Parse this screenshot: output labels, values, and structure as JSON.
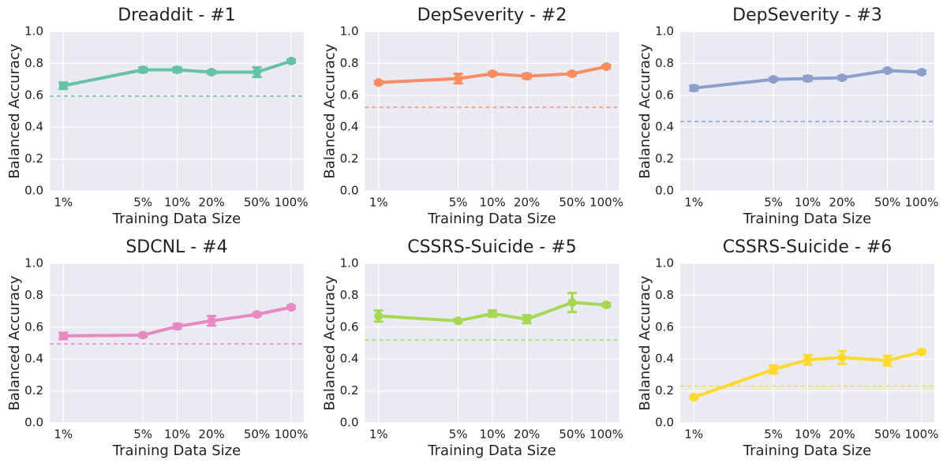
{
  "chart_data": [
    {
      "type": "line",
      "title": "Dreaddit - #1",
      "xlabel": "Training Data Size",
      "ylabel": "Balanced Accuracy",
      "x": [
        1,
        5,
        10,
        20,
        50,
        100
      ],
      "log_x": true,
      "xlim": [
        0.76,
        129
      ],
      "ylim": [
        0,
        1
      ],
      "xticks": [
        {
          "value": 1,
          "label": "1%"
        },
        {
          "value": 5,
          "label": "5%"
        },
        {
          "value": 10,
          "label": "10%"
        },
        {
          "value": 20,
          "label": "20%"
        },
        {
          "value": 50,
          "label": "50%"
        },
        {
          "value": 100,
          "label": "100%"
        }
      ],
      "yticks": [
        {
          "value": 0,
          "label": "0.0"
        },
        0.2,
        0.4,
        0.6,
        0.8,
        {
          "value": 1,
          "label": "1.0"
        }
      ],
      "grid": true,
      "series": [
        {
          "color": "#66c2a5",
          "values": [
            0.66,
            0.76,
            0.76,
            0.745,
            0.745,
            0.815
          ],
          "errors": [
            0.02,
            0.015,
            0.015,
            0.01,
            0.03,
            0.01
          ]
        }
      ],
      "baseline": 0.595
    },
    {
      "type": "line",
      "title": "DepSeverity - #2",
      "xlabel": "Training Data Size",
      "ylabel": "Balanced Accuracy",
      "x": [
        1,
        5,
        10,
        20,
        50,
        100
      ],
      "log_x": true,
      "xlim": [
        0.76,
        129
      ],
      "ylim": [
        0,
        1
      ],
      "xticks": [
        {
          "value": 1,
          "label": "1%"
        },
        {
          "value": 5,
          "label": "5%"
        },
        {
          "value": 10,
          "label": "10%"
        },
        {
          "value": 20,
          "label": "20%"
        },
        {
          "value": 50,
          "label": "50%"
        },
        {
          "value": 100,
          "label": "100%"
        }
      ],
      "yticks": [
        {
          "value": 0,
          "label": "0.0"
        },
        0.2,
        0.4,
        0.6,
        0.8,
        {
          "value": 1,
          "label": "1.0"
        }
      ],
      "grid": true,
      "series": [
        {
          "color": "#fc8d62",
          "values": [
            0.68,
            0.705,
            0.735,
            0.72,
            0.735,
            0.78
          ],
          "errors": [
            0.01,
            0.03,
            0.01,
            0.015,
            0.01,
            0.01
          ]
        }
      ],
      "baseline": 0.525
    },
    {
      "type": "line",
      "title": "DepSeverity - #3",
      "xlabel": "Training Data Size",
      "ylabel": "Balanced Accuracy",
      "x": [
        1,
        5,
        10,
        20,
        50,
        100
      ],
      "log_x": true,
      "xlim": [
        0.76,
        129
      ],
      "ylim": [
        0,
        1
      ],
      "xticks": [
        {
          "value": 1,
          "label": "1%"
        },
        {
          "value": 5,
          "label": "5%"
        },
        {
          "value": 10,
          "label": "10%"
        },
        {
          "value": 20,
          "label": "20%"
        },
        {
          "value": 50,
          "label": "50%"
        },
        {
          "value": 100,
          "label": "100%"
        }
      ],
      "yticks": [
        {
          "value": 0,
          "label": "0.0"
        },
        0.2,
        0.4,
        0.6,
        0.8,
        {
          "value": 1,
          "label": "1.0"
        }
      ],
      "grid": true,
      "series": [
        {
          "color": "#8da0cb",
          "values": [
            0.645,
            0.7,
            0.705,
            0.71,
            0.755,
            0.745
          ],
          "errors": [
            0.015,
            0.01,
            0.015,
            0.01,
            0.01,
            0.01
          ]
        }
      ],
      "baseline": 0.435
    },
    {
      "type": "line",
      "title": "SDCNL - #4",
      "xlabel": "Training Data Size",
      "ylabel": "Balanced Accuracy",
      "x": [
        1,
        5,
        10,
        20,
        50,
        100
      ],
      "log_x": true,
      "xlim": [
        0.76,
        129
      ],
      "ylim": [
        0,
        1
      ],
      "xticks": [
        {
          "value": 1,
          "label": "1%"
        },
        {
          "value": 5,
          "label": "5%"
        },
        {
          "value": 10,
          "label": "10%"
        },
        {
          "value": 20,
          "label": "20%"
        },
        {
          "value": 50,
          "label": "50%"
        },
        {
          "value": 100,
          "label": "100%"
        }
      ],
      "yticks": [
        {
          "value": 0,
          "label": "0.0"
        },
        0.2,
        0.4,
        0.6,
        0.8,
        {
          "value": 1,
          "label": "1.0"
        }
      ],
      "grid": true,
      "series": [
        {
          "color": "#e78ac3",
          "values": [
            0.545,
            0.55,
            0.605,
            0.64,
            0.68,
            0.725
          ],
          "errors": [
            0.02,
            0.01,
            0.015,
            0.03,
            0.01,
            0.01
          ]
        }
      ],
      "baseline": 0.495
    },
    {
      "type": "line",
      "title": "CSSRS-Suicide - #5",
      "xlabel": "Training Data Size",
      "ylabel": "Balanced Accuracy",
      "x": [
        1,
        5,
        10,
        20,
        50,
        100
      ],
      "log_x": true,
      "xlim": [
        0.76,
        129
      ],
      "ylim": [
        0,
        1
      ],
      "xticks": [
        {
          "value": 1,
          "label": "1%"
        },
        {
          "value": 5,
          "label": "5%"
        },
        {
          "value": 10,
          "label": "10%"
        },
        {
          "value": 20,
          "label": "20%"
        },
        {
          "value": 50,
          "label": "50%"
        },
        {
          "value": 100,
          "label": "100%"
        }
      ],
      "yticks": [
        {
          "value": 0,
          "label": "0.0"
        },
        0.2,
        0.4,
        0.6,
        0.8,
        {
          "value": 1,
          "label": "1.0"
        }
      ],
      "grid": true,
      "series": [
        {
          "color": "#a6d854",
          "values": [
            0.67,
            0.64,
            0.685,
            0.65,
            0.755,
            0.74
          ],
          "errors": [
            0.035,
            0.01,
            0.02,
            0.025,
            0.06,
            0.01
          ]
        }
      ],
      "baseline": 0.52
    },
    {
      "type": "line",
      "title": "CSSRS-Suicide - #6",
      "xlabel": "Training Data Size",
      "ylabel": "Balanced Accuracy",
      "x": [
        1,
        5,
        10,
        20,
        50,
        100
      ],
      "log_x": true,
      "xlim": [
        0.76,
        129
      ],
      "ylim": [
        0,
        1
      ],
      "xticks": [
        {
          "value": 1,
          "label": "1%"
        },
        {
          "value": 5,
          "label": "5%"
        },
        {
          "value": 10,
          "label": "10%"
        },
        {
          "value": 20,
          "label": "20%"
        },
        {
          "value": 50,
          "label": "50%"
        },
        {
          "value": 100,
          "label": "100%"
        }
      ],
      "yticks": [
        {
          "value": 0,
          "label": "0.0"
        },
        0.2,
        0.4,
        0.6,
        0.8,
        {
          "value": 1,
          "label": "1.0"
        }
      ],
      "grid": true,
      "series": [
        {
          "color": "#ffd92f",
          "values": [
            0.16,
            0.335,
            0.395,
            0.41,
            0.39,
            0.445
          ],
          "errors": [
            0.01,
            0.025,
            0.03,
            0.04,
            0.03,
            0.01
          ]
        }
      ],
      "baseline": 0.23
    }
  ]
}
